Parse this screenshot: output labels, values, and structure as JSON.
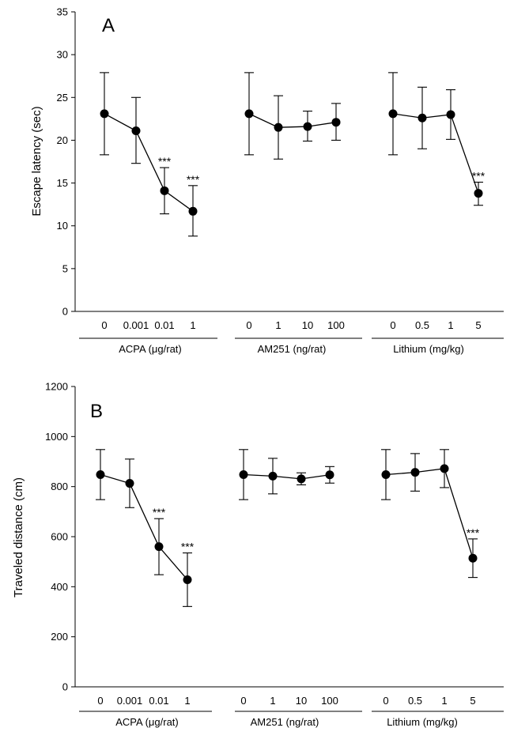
{
  "chart_data": [
    {
      "type": "line",
      "panel_label": "A",
      "ylabel": "Escape latency (sec)",
      "ylim": [
        0,
        35
      ],
      "yticks": [
        0,
        5,
        10,
        15,
        20,
        25,
        30,
        35
      ],
      "grid": false,
      "groups": [
        {
          "name": "ACPA (μg/rat)",
          "categories": [
            "0",
            "0.001",
            "0.01",
            "1"
          ],
          "values": [
            23.1,
            21.1,
            14.1,
            11.7
          ],
          "err_upper": [
            27.9,
            25.0,
            16.8,
            14.7
          ],
          "err_lower": [
            18.3,
            17.3,
            11.4,
            8.8
          ],
          "significance": [
            "",
            "",
            "***",
            "***"
          ]
        },
        {
          "name": "AM251 (ng/rat)",
          "categories": [
            "0",
            "1",
            "10",
            "100"
          ],
          "values": [
            23.1,
            21.5,
            21.6,
            22.1
          ],
          "err_upper": [
            27.9,
            25.2,
            23.4,
            24.3
          ],
          "err_lower": [
            18.3,
            17.8,
            19.9,
            20.0
          ],
          "significance": [
            "",
            "",
            "",
            ""
          ]
        },
        {
          "name": "Lithium (mg/kg)",
          "categories": [
            "0",
            "0.5",
            "1",
            "5"
          ],
          "values": [
            23.1,
            22.6,
            23.0,
            13.8
          ],
          "err_upper": [
            27.9,
            26.2,
            25.9,
            15.1
          ],
          "err_lower": [
            18.3,
            19.0,
            20.1,
            12.4
          ],
          "significance": [
            "",
            "",
            "",
            "***"
          ]
        }
      ]
    },
    {
      "type": "line",
      "panel_label": "B",
      "ylabel": "Traveled distance (cm)",
      "ylim": [
        0,
        1200
      ],
      "yticks": [
        0,
        200,
        400,
        600,
        800,
        1000,
        1200
      ],
      "grid": false,
      "groups": [
        {
          "name": "ACPA (μg/rat)",
          "categories": [
            "0",
            "0.001",
            "0.01",
            "1"
          ],
          "values": [
            848,
            813,
            560,
            428
          ],
          "err_upper": [
            948,
            910,
            672,
            535
          ],
          "err_lower": [
            748,
            716,
            448,
            321
          ],
          "significance": [
            "",
            "",
            "***",
            "***"
          ]
        },
        {
          "name": "AM251 (ng/rat)",
          "categories": [
            "0",
            "1",
            "10",
            "100"
          ],
          "values": [
            848,
            842,
            831,
            847
          ],
          "err_upper": [
            948,
            913,
            855,
            880
          ],
          "err_lower": [
            748,
            771,
            807,
            814
          ],
          "significance": [
            "",
            "",
            "",
            ""
          ]
        },
        {
          "name": "Lithium (mg/kg)",
          "categories": [
            "0",
            "0.5",
            "1",
            "5"
          ],
          "values": [
            848,
            857,
            872,
            514
          ],
          "err_upper": [
            948,
            932,
            948,
            591
          ],
          "err_lower": [
            748,
            782,
            796,
            437
          ],
          "significance": [
            "",
            "",
            "",
            "***"
          ]
        }
      ]
    }
  ]
}
